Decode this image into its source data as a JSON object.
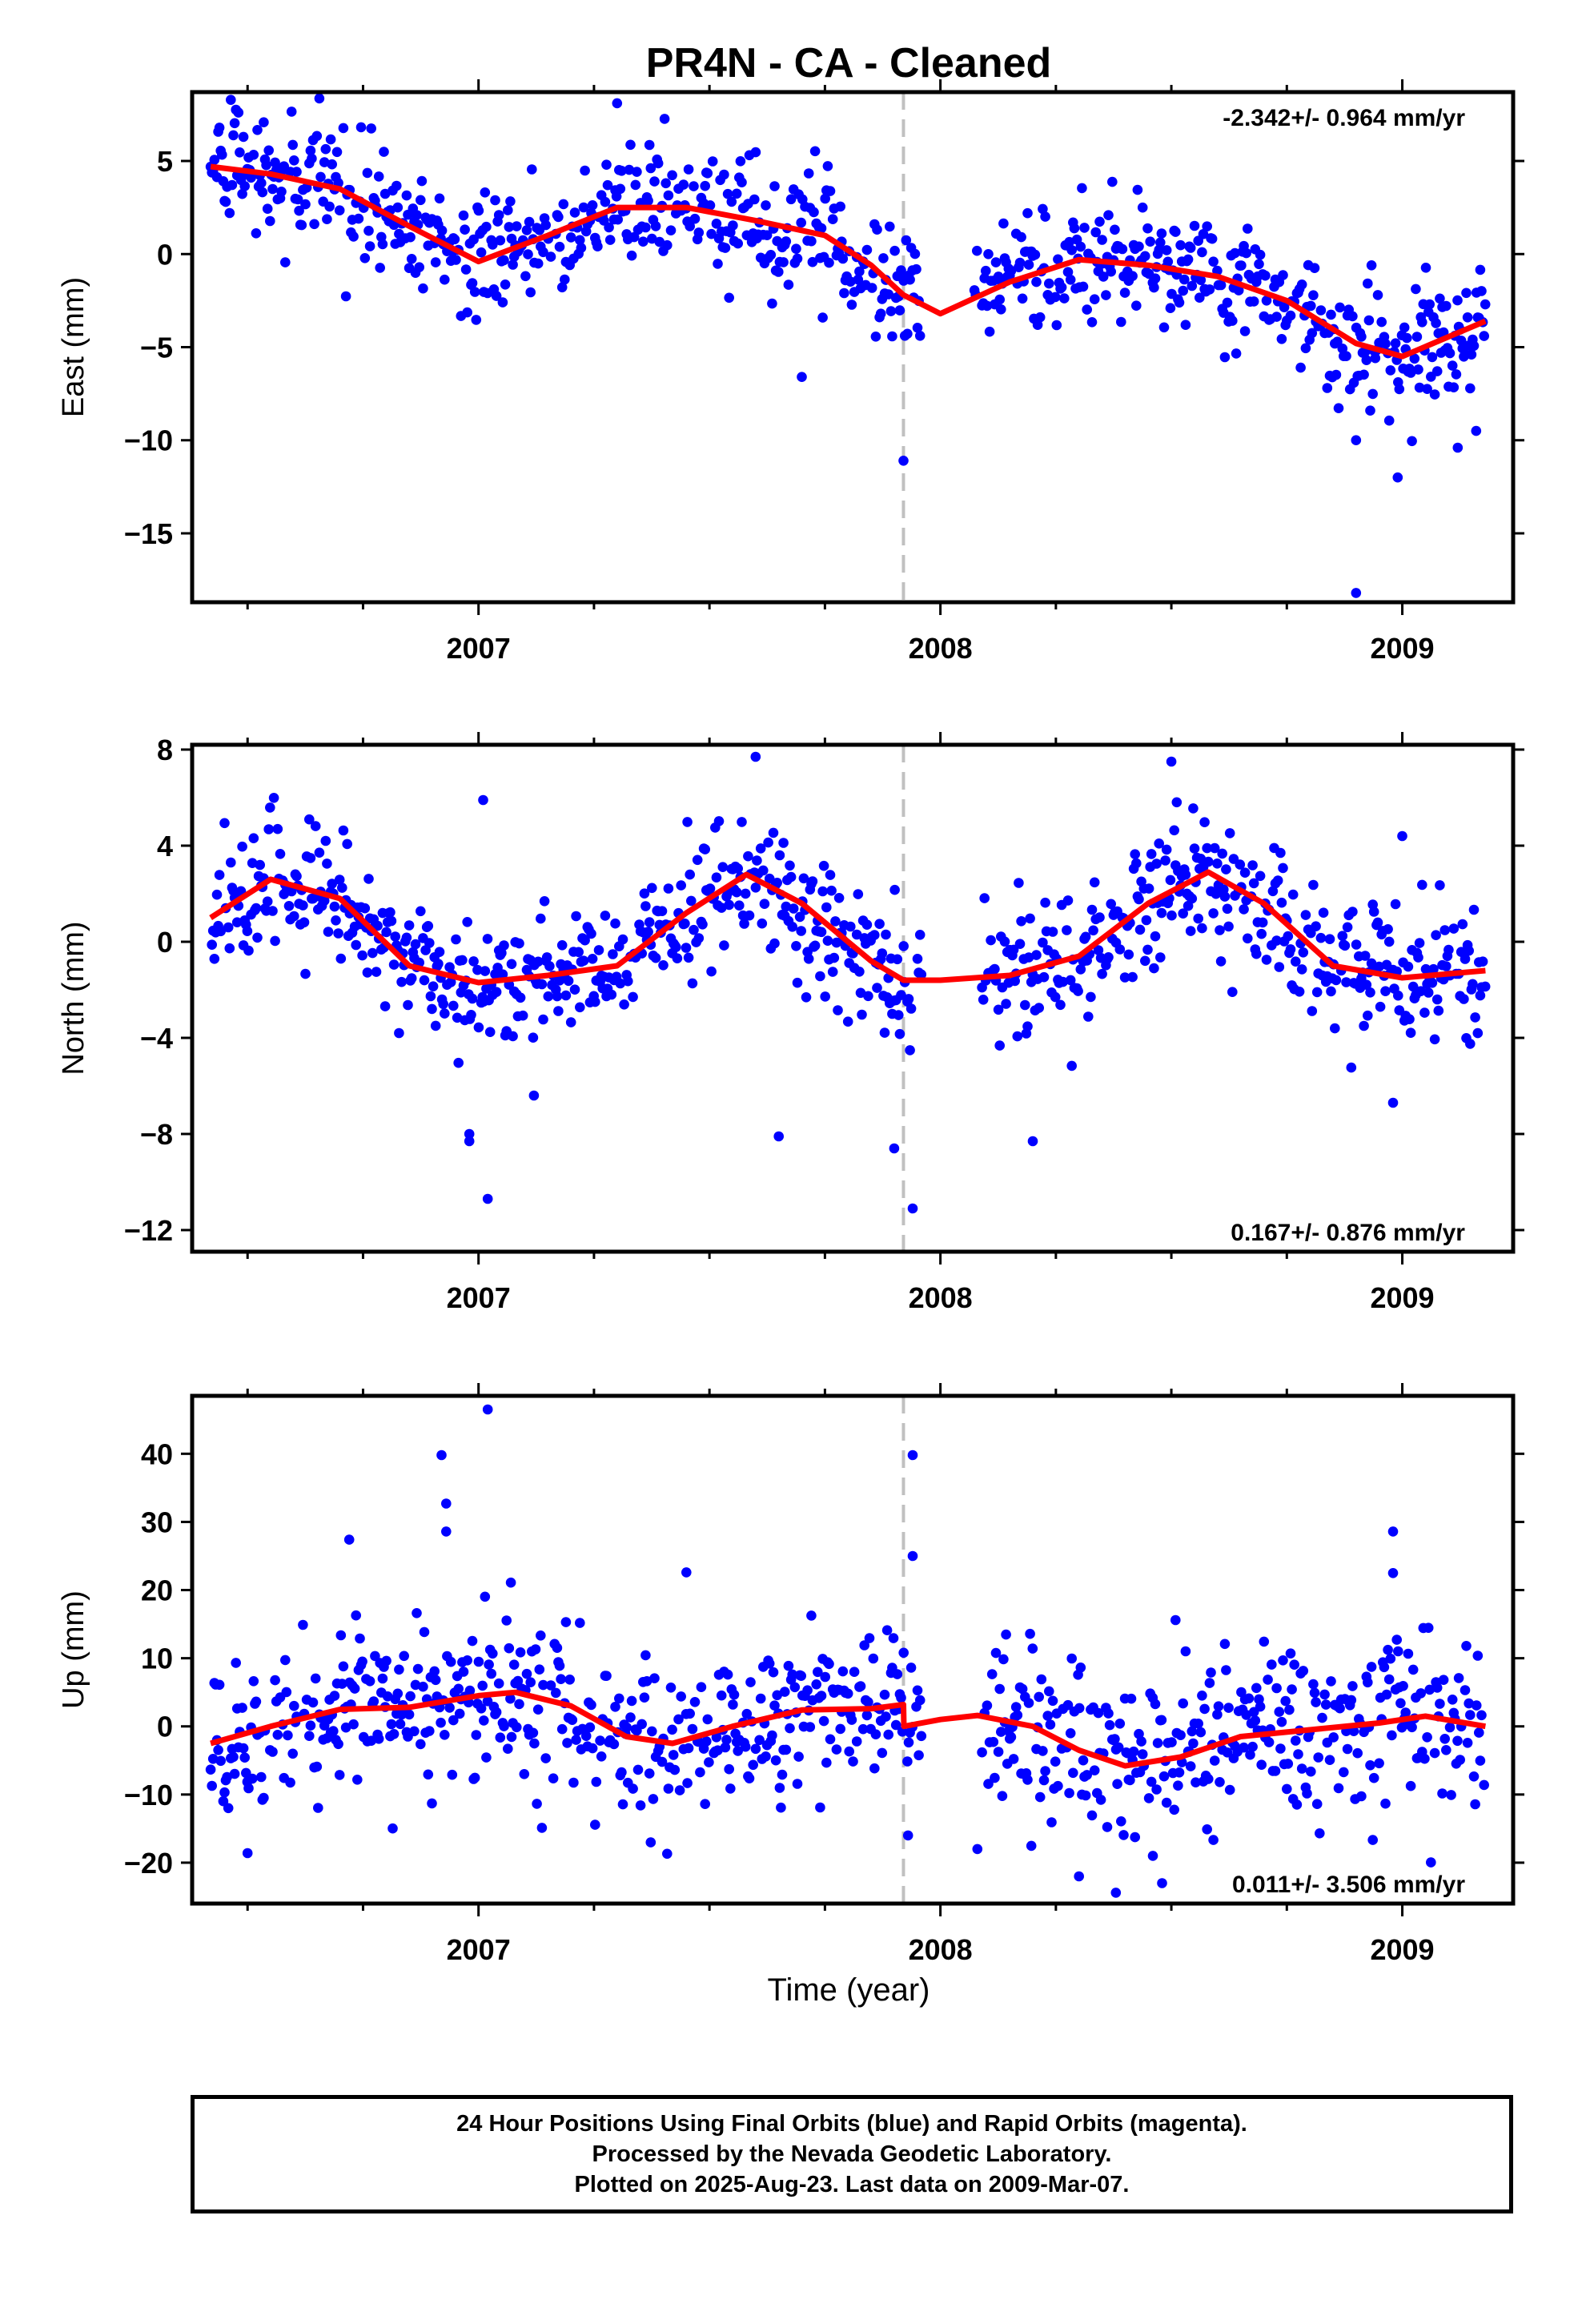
{
  "title": "PR4N  - CA - Cleaned",
  "xlabel": "Time (year)",
  "colors": {
    "points": "#0000ff",
    "fit": "#ff0000",
    "event_line": "#c0c0c0"
  },
  "footer": {
    "line1": "24 Hour Positions Using Final Orbits (blue) and Rapid Orbits (magenta).",
    "line2": "Processed by the Nevada Geodetic Laboratory.",
    "line3": "Plotted on 2025-Aug-23. Last data on 2009-Mar-07."
  },
  "chart_data": [
    {
      "type": "scatter",
      "component": "East",
      "ylabel": "East (mm)",
      "rate": "-2.342+/- 0.964 mm/yr",
      "xlim": [
        2006.38,
        2009.24
      ],
      "ylim": [
        -18.7,
        8.7
      ],
      "yticks": [
        5,
        0,
        -5,
        -10,
        -15
      ],
      "xticks": [
        2007,
        2008,
        2009
      ],
      "event_line": 2007.92,
      "fit": {
        "x": [
          2006.42,
          2006.55,
          2006.7,
          2006.85,
          2007.0,
          2007.15,
          2007.3,
          2007.45,
          2007.6,
          2007.75,
          2007.85,
          2007.92,
          2008.0,
          2008.15,
          2008.3,
          2008.45,
          2008.6,
          2008.75,
          2008.9,
          2009.0,
          2009.18
        ],
        "y": [
          4.7,
          4.3,
          3.5,
          1.5,
          -0.4,
          1.0,
          2.5,
          2.5,
          1.8,
          1.0,
          -0.6,
          -2.2,
          -3.2,
          -1.5,
          -0.3,
          -0.6,
          -1.2,
          -2.5,
          -4.8,
          -5.5,
          -3.6
        ]
      },
      "outliers": [
        [
          2007.3,
          8.1
        ],
        [
          2007.92,
          -11.1
        ],
        [
          2008.9,
          -10.0
        ],
        [
          2008.99,
          -12.0
        ],
        [
          2008.9,
          -18.2
        ],
        [
          2009.16,
          -9.5
        ],
        [
          2009.12,
          -10.4
        ],
        [
          2007.7,
          -6.6
        ]
      ]
    },
    {
      "type": "scatter",
      "component": "North",
      "ylabel": "North (mm)",
      "rate": "0.167+/- 0.876 mm/yr",
      "xlim": [
        2006.38,
        2009.24
      ],
      "ylim": [
        -12.9,
        8.2
      ],
      "yticks": [
        8,
        4,
        0,
        -4,
        -8,
        -12
      ],
      "xticks": [
        2007,
        2008,
        2009
      ],
      "event_line": 2007.92,
      "fit": {
        "x": [
          2006.42,
          2006.55,
          2006.7,
          2006.85,
          2007.0,
          2007.15,
          2007.3,
          2007.45,
          2007.58,
          2007.7,
          2007.85,
          2007.92,
          2008.0,
          2008.15,
          2008.3,
          2008.45,
          2008.58,
          2008.7,
          2008.85,
          2009.0,
          2009.18
        ],
        "y": [
          1.0,
          2.6,
          1.8,
          -1.0,
          -1.7,
          -1.4,
          -1.0,
          1.2,
          2.8,
          1.6,
          -0.8,
          -1.6,
          -1.6,
          -1.4,
          -0.6,
          1.6,
          2.9,
          1.6,
          -1.0,
          -1.5,
          -1.2
        ]
      },
      "outliers": [
        [
          2006.98,
          -8.0
        ],
        [
          2006.98,
          -8.3
        ],
        [
          2007.02,
          -10.7
        ],
        [
          2007.12,
          -6.4
        ],
        [
          2007.65,
          -8.1
        ],
        [
          2007.9,
          -8.6
        ],
        [
          2007.94,
          -11.1
        ],
        [
          2008.2,
          -8.3
        ],
        [
          2008.98,
          -6.7
        ],
        [
          2007.01,
          5.9
        ],
        [
          2007.6,
          7.7
        ],
        [
          2008.5,
          7.5
        ],
        [
          2009.0,
          4.4
        ]
      ]
    },
    {
      "type": "scatter",
      "component": "Up",
      "ylabel": "Up (mm)",
      "rate": "0.011+/- 3.506 mm/yr",
      "xlim": [
        2006.38,
        2009.24
      ],
      "ylim": [
        -26.0,
        48.5
      ],
      "yticks": [
        40,
        30,
        20,
        10,
        0,
        -10,
        -20
      ],
      "xticks": [
        2007,
        2008,
        2009
      ],
      "event_line": 2007.92,
      "fit": {
        "x": [
          2006.42,
          2006.55,
          2006.7,
          2006.85,
          2007.0,
          2007.08,
          2007.2,
          2007.32,
          2007.42,
          2007.55,
          2007.7,
          2007.85,
          2007.92,
          2007.921,
          2008.0,
          2008.08,
          2008.2,
          2008.3,
          2008.4,
          2008.52,
          2008.65,
          2008.8,
          2008.95,
          2009.05,
          2009.18
        ],
        "y": [
          -2.5,
          0.0,
          2.5,
          2.8,
          4.5,
          5.0,
          3.0,
          -1.5,
          -2.5,
          0.0,
          2.4,
          2.6,
          3.2,
          0.0,
          1.0,
          1.6,
          0.0,
          -3.5,
          -5.8,
          -4.5,
          -1.5,
          -0.5,
          0.5,
          1.5,
          0.0
        ]
      },
      "outliers": [
        [
          2007.02,
          46.5
        ],
        [
          2006.92,
          39.8
        ],
        [
          2006.93,
          32.7
        ],
        [
          2006.93,
          28.6
        ],
        [
          2007.94,
          39.8
        ],
        [
          2007.94,
          25.0
        ],
        [
          2008.98,
          28.6
        ],
        [
          2008.98,
          22.5
        ],
        [
          2006.72,
          27.4
        ],
        [
          2007.45,
          22.6
        ],
        [
          2007.07,
          21.1
        ],
        [
          2008.08,
          -18.0
        ],
        [
          2008.3,
          -22.0
        ],
        [
          2008.38,
          -24.4
        ],
        [
          2008.48,
          -23.0
        ],
        [
          2006.5,
          -18.6
        ],
        [
          2008.46,
          -19.0
        ],
        [
          2007.93,
          -16.0
        ]
      ]
    }
  ]
}
